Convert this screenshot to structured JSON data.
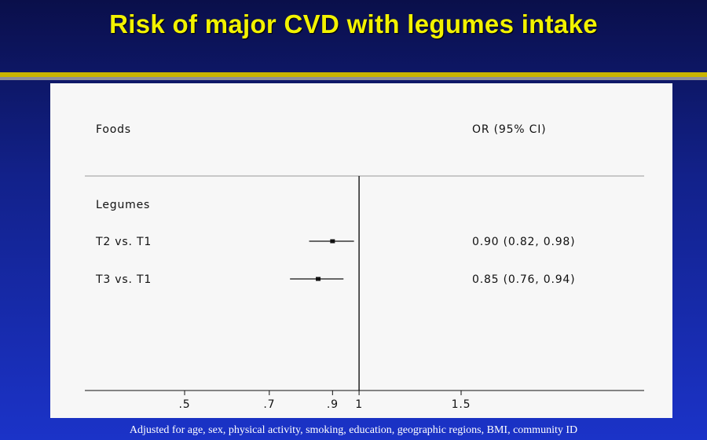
{
  "slide": {
    "title": "Risk of major CVD with legumes intake",
    "footnote": "Adjusted for age, sex, physical activity, smoking, education, geographic regions, BMI, community ID"
  },
  "colors": {
    "title": "#f2f200",
    "rule": "#c9b400",
    "panel": "#f7f7f7",
    "ink": "#111111"
  },
  "chart_data": {
    "type": "forest",
    "col_left": "Foods",
    "col_right": "OR (95% CI)",
    "group_label": "Legumes",
    "rows": [
      {
        "label": "T2 vs. T1",
        "or": 0.9,
        "lower": 0.82,
        "upper": 0.98,
        "ci_text": "0.90 (0.82, 0.98)"
      },
      {
        "label": "T3 vs. T1",
        "or": 0.85,
        "lower": 0.76,
        "upper": 0.94,
        "ci_text": "0.85 (0.76, 0.94)"
      }
    ],
    "reference": 1,
    "xscale": "log",
    "xlim": [
      0.4,
      2.0
    ],
    "xticks": [
      0.5,
      0.7,
      0.9,
      1,
      1.5
    ],
    "xtick_labels": [
      ".5",
      ".7",
      ".9",
      "1",
      "1.5"
    ]
  }
}
